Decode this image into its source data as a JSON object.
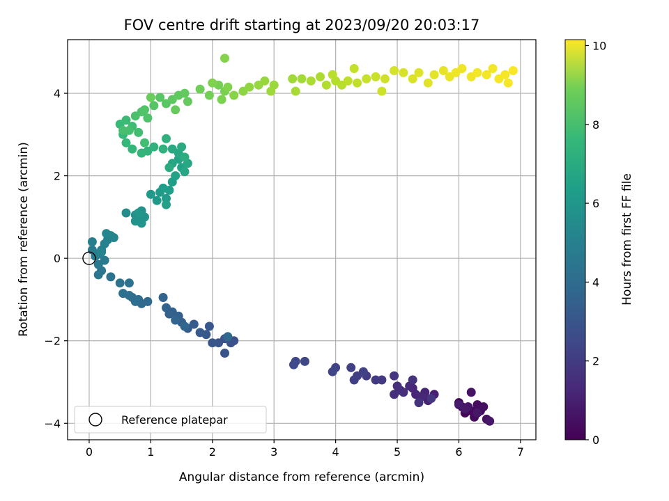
{
  "chart_data": {
    "type": "scatter",
    "title": "FOV centre drift starting at 2023/09/20 20:03:17",
    "xlabel": "Angular distance from reference (arcmin)",
    "ylabel": "Rotation from reference (arcmin)",
    "xlim": [
      -0.35,
      7.25
    ],
    "ylim": [
      -4.4,
      5.3
    ],
    "x_ticks": [
      0,
      1,
      2,
      3,
      4,
      5,
      6,
      7
    ],
    "y_ticks": [
      -4,
      -2,
      0,
      2,
      4
    ],
    "grid": true,
    "colorbar": {
      "label": "Hours from first FF file",
      "range": [
        0,
        10.15
      ],
      "ticks": [
        0,
        2,
        4,
        6,
        8,
        10
      ],
      "colormap": "viridis"
    },
    "legend": {
      "placement": "lower-left",
      "entries": [
        {
          "label": "Reference platepar",
          "marker": "open-circle"
        }
      ]
    },
    "reference_point": {
      "x": 0,
      "y": 0
    },
    "series": [
      {
        "points": [
          [
            6.0,
            -3.5,
            0.05
          ],
          [
            6.05,
            -3.6,
            0.1
          ],
          [
            6.1,
            -3.75,
            0.15
          ],
          [
            6.2,
            -3.7,
            0.2
          ],
          [
            6.25,
            -3.85,
            0.25
          ],
          [
            6.3,
            -3.55,
            0.3
          ],
          [
            6.35,
            -3.7,
            0.35
          ],
          [
            6.4,
            -3.6,
            0.4
          ],
          [
            6.45,
            -3.9,
            0.45
          ],
          [
            6.2,
            -3.25,
            0.5
          ],
          [
            6.15,
            -3.6,
            0.55
          ],
          [
            6.3,
            -3.75,
            0.6
          ],
          [
            6.5,
            -3.95,
            0.65
          ],
          [
            6.1,
            -3.65,
            0.7
          ],
          [
            6.0,
            -3.55,
            0.75
          ],
          [
            5.6,
            -3.3,
            0.9
          ],
          [
            5.5,
            -3.45,
            0.95
          ],
          [
            5.45,
            -3.25,
            1.0
          ],
          [
            5.3,
            -3.3,
            1.05
          ],
          [
            5.25,
            -3.15,
            1.1
          ],
          [
            5.4,
            -3.35,
            1.15
          ],
          [
            5.2,
            -3.1,
            1.2
          ],
          [
            5.05,
            -3.2,
            1.25
          ],
          [
            4.95,
            -3.3,
            1.3
          ],
          [
            5.0,
            -3.1,
            1.35
          ],
          [
            5.1,
            -3.25,
            1.4
          ],
          [
            5.35,
            -3.5,
            1.45
          ],
          [
            5.25,
            -2.95,
            1.5
          ],
          [
            4.95,
            -2.85,
            1.55
          ],
          [
            5.55,
            -3.4,
            1.6
          ],
          [
            4.75,
            -2.95,
            1.7
          ],
          [
            4.65,
            -2.95,
            1.75
          ],
          [
            4.5,
            -2.85,
            1.8
          ],
          [
            4.35,
            -2.85,
            1.85
          ],
          [
            4.3,
            -2.95,
            1.9
          ],
          [
            4.25,
            -2.65,
            1.95
          ],
          [
            4.45,
            -2.75,
            2.0
          ],
          [
            4.0,
            -2.65,
            2.05
          ],
          [
            3.95,
            -2.75,
            2.1
          ],
          [
            3.5,
            -2.5,
            2.15
          ],
          [
            3.35,
            -2.5,
            2.2
          ],
          [
            3.32,
            -2.58,
            2.25
          ],
          [
            2.35,
            -2.0,
            2.45
          ],
          [
            2.3,
            -2.05,
            2.5
          ],
          [
            2.2,
            -1.95,
            2.55
          ],
          [
            2.1,
            -2.05,
            2.6
          ],
          [
            2.2,
            -2.3,
            2.65
          ],
          [
            2.0,
            -2.05,
            2.7
          ],
          [
            1.9,
            -1.85,
            2.75
          ],
          [
            1.95,
            -1.65,
            2.8
          ],
          [
            1.8,
            -1.8,
            2.85
          ],
          [
            1.7,
            -1.6,
            2.9
          ],
          [
            1.6,
            -1.7,
            2.95
          ],
          [
            1.5,
            -1.55,
            3.0
          ],
          [
            1.45,
            -1.4,
            3.05
          ],
          [
            1.35,
            -1.3,
            3.1
          ],
          [
            1.3,
            -1.35,
            3.15
          ],
          [
            1.25,
            -1.2,
            3.2
          ],
          [
            1.2,
            -0.95,
            3.25
          ],
          [
            1.4,
            -1.5,
            3.3
          ],
          [
            1.55,
            -1.65,
            3.35
          ],
          [
            2.25,
            -1.9,
            3.4
          ],
          [
            0.95,
            -1.05,
            3.45
          ],
          [
            0.85,
            -1.1,
            3.5
          ],
          [
            0.8,
            -1.0,
            3.55
          ],
          [
            0.7,
            -0.95,
            3.6
          ],
          [
            0.75,
            -1.05,
            3.65
          ],
          [
            0.65,
            -0.9,
            3.7
          ],
          [
            0.55,
            -0.85,
            3.75
          ],
          [
            0.65,
            -0.6,
            3.8
          ],
          [
            0.5,
            -0.6,
            3.85
          ],
          [
            0.35,
            -0.45,
            3.9
          ],
          [
            0.15,
            -0.4,
            4.0
          ],
          [
            0.2,
            -0.3,
            4.05
          ],
          [
            0.15,
            -0.15,
            4.1
          ],
          [
            0.25,
            -0.05,
            4.15
          ],
          [
            0.1,
            0.05,
            4.2
          ],
          [
            0.05,
            0.2,
            4.25
          ],
          [
            0.15,
            0.1,
            4.3
          ],
          [
            0.2,
            0.2,
            4.35
          ],
          [
            0.05,
            0.4,
            4.4
          ],
          [
            0.25,
            0.35,
            4.45
          ],
          [
            0.3,
            0.45,
            4.5
          ],
          [
            0.35,
            0.55,
            4.55
          ],
          [
            0.2,
            0.15,
            4.6
          ],
          [
            0.4,
            0.5,
            4.65
          ],
          [
            0.28,
            0.6,
            4.7
          ],
          [
            0.6,
            1.1,
            4.95
          ],
          [
            0.75,
            1.05,
            5.0
          ],
          [
            0.8,
            0.95,
            5.05
          ],
          [
            0.85,
            1.15,
            5.1
          ],
          [
            0.9,
            1.0,
            5.15
          ],
          [
            0.75,
            0.9,
            5.2
          ],
          [
            0.85,
            0.85,
            5.25
          ],
          [
            0.8,
            1.1,
            5.3
          ],
          [
            1.0,
            1.55,
            5.4
          ],
          [
            1.1,
            1.4,
            5.45
          ],
          [
            1.15,
            1.6,
            5.5
          ],
          [
            1.25,
            1.45,
            5.55
          ],
          [
            1.2,
            1.7,
            5.6
          ],
          [
            1.3,
            1.65,
            5.65
          ],
          [
            1.35,
            1.85,
            5.7
          ],
          [
            1.25,
            1.3,
            5.75
          ],
          [
            1.4,
            2.0,
            5.8
          ],
          [
            1.5,
            2.2,
            5.85
          ],
          [
            1.45,
            2.4,
            5.9
          ],
          [
            1.35,
            2.3,
            5.95
          ],
          [
            1.55,
            2.1,
            6.0
          ],
          [
            1.6,
            2.3,
            6.05
          ],
          [
            1.45,
            2.55,
            6.1
          ],
          [
            1.35,
            2.65,
            6.15
          ],
          [
            1.5,
            2.7,
            6.2
          ],
          [
            1.3,
            2.2,
            6.25
          ],
          [
            1.55,
            2.45,
            6.3
          ],
          [
            1.25,
            2.9,
            6.45
          ],
          [
            1.2,
            2.65,
            6.5
          ],
          [
            1.05,
            2.7,
            6.55
          ],
          [
            0.95,
            2.6,
            6.6
          ],
          [
            0.85,
            2.55,
            6.65
          ],
          [
            0.7,
            2.65,
            6.7
          ],
          [
            0.6,
            2.8,
            6.75
          ],
          [
            0.55,
            3.0,
            6.8
          ],
          [
            0.5,
            3.25,
            6.85
          ],
          [
            0.6,
            3.35,
            6.9
          ],
          [
            0.7,
            3.2,
            6.95
          ],
          [
            0.8,
            3.05,
            7.0
          ],
          [
            0.9,
            2.8,
            7.05
          ],
          [
            0.65,
            3.1,
            7.1
          ],
          [
            0.55,
            3.1,
            7.15
          ],
          [
            0.75,
            3.45,
            7.2
          ],
          [
            0.85,
            3.55,
            7.25
          ],
          [
            0.95,
            3.4,
            7.3
          ],
          [
            0.9,
            3.6,
            7.35
          ],
          [
            1.05,
            3.7,
            7.4
          ],
          [
            1.15,
            3.9,
            7.45
          ],
          [
            1.25,
            3.75,
            7.5
          ],
          [
            1.35,
            3.85,
            7.55
          ],
          [
            1.45,
            3.95,
            7.6
          ],
          [
            1.55,
            4.0,
            7.65
          ],
          [
            1.6,
            3.8,
            7.7
          ],
          [
            1.4,
            3.6,
            7.75
          ],
          [
            1.0,
            3.9,
            7.8
          ],
          [
            1.8,
            4.1,
            7.9
          ],
          [
            1.95,
            3.95,
            7.95
          ],
          [
            2.1,
            4.2,
            8.0
          ],
          [
            2.2,
            4.05,
            8.05
          ],
          [
            2.15,
            3.85,
            8.1
          ],
          [
            2.0,
            4.25,
            8.15
          ],
          [
            2.25,
            4.15,
            8.2
          ],
          [
            2.2,
            4.85,
            8.25
          ],
          [
            2.35,
            3.95,
            8.3
          ],
          [
            2.5,
            4.05,
            8.4
          ],
          [
            2.6,
            4.15,
            8.45
          ],
          [
            2.75,
            4.2,
            8.5
          ],
          [
            2.85,
            4.3,
            8.55
          ],
          [
            3.0,
            4.2,
            8.6
          ],
          [
            2.95,
            4.05,
            8.65
          ],
          [
            3.3,
            4.35,
            8.7
          ],
          [
            3.45,
            4.35,
            8.75
          ],
          [
            3.35,
            4.05,
            8.8
          ],
          [
            3.6,
            4.3,
            8.85
          ],
          [
            3.75,
            4.4,
            8.9
          ],
          [
            3.85,
            4.2,
            8.95
          ],
          [
            4.0,
            4.3,
            9.0
          ],
          [
            4.1,
            4.2,
            9.05
          ],
          [
            3.95,
            4.45,
            9.1
          ],
          [
            4.2,
            4.3,
            9.15
          ],
          [
            4.35,
            4.25,
            9.2
          ],
          [
            4.3,
            4.6,
            9.25
          ],
          [
            4.5,
            4.35,
            9.3
          ],
          [
            4.65,
            4.4,
            9.35
          ],
          [
            4.75,
            4.05,
            9.4
          ],
          [
            4.8,
            4.35,
            9.45
          ],
          [
            4.95,
            4.55,
            9.5
          ],
          [
            5.1,
            4.5,
            9.55
          ],
          [
            5.25,
            4.35,
            9.6
          ],
          [
            5.35,
            4.5,
            9.65
          ],
          [
            5.5,
            4.25,
            9.7
          ],
          [
            5.6,
            4.45,
            9.75
          ],
          [
            5.75,
            4.55,
            9.8
          ],
          [
            5.85,
            4.4,
            9.85
          ],
          [
            5.95,
            4.5,
            9.9
          ],
          [
            6.05,
            4.6,
            9.93
          ],
          [
            6.2,
            4.4,
            9.95
          ],
          [
            6.3,
            4.5,
            9.97
          ],
          [
            6.45,
            4.45,
            9.99
          ],
          [
            6.55,
            4.6,
            10.0
          ],
          [
            6.65,
            4.35,
            10.02
          ],
          [
            6.75,
            4.45,
            10.04
          ],
          [
            6.8,
            4.25,
            10.06
          ],
          [
            6.88,
            4.55,
            10.08
          ]
        ]
      }
    ]
  }
}
